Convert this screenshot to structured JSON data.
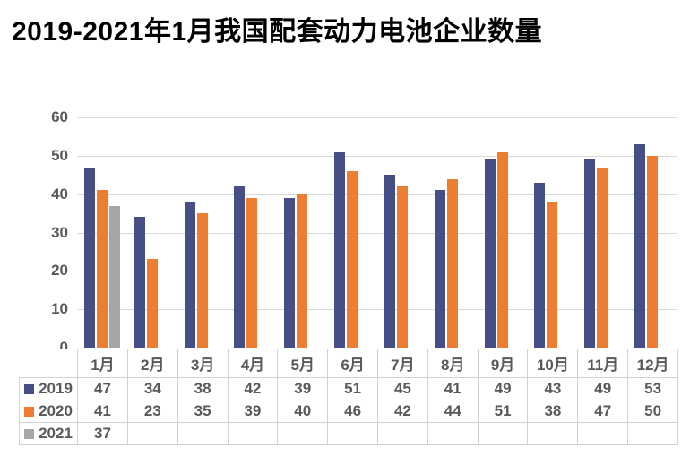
{
  "title": "2019-2021年1月我国配套动力电池企业数量",
  "chart_data": {
    "type": "bar",
    "title": "2019-2021年1月我国配套动力电池企业数量",
    "categories": [
      "1月",
      "2月",
      "3月",
      "4月",
      "5月",
      "6月",
      "7月",
      "8月",
      "9月",
      "10月",
      "11月",
      "12月"
    ],
    "series": [
      {
        "name": "2019",
        "color": "#454F85",
        "values": [
          47,
          34,
          38,
          42,
          39,
          51,
          45,
          41,
          49,
          43,
          49,
          53
        ]
      },
      {
        "name": "2020",
        "color": "#ED7D31",
        "values": [
          41,
          23,
          35,
          39,
          40,
          46,
          42,
          44,
          51,
          38,
          47,
          50
        ]
      },
      {
        "name": "2021",
        "color": "#A6A6A6",
        "values": [
          37,
          null,
          null,
          null,
          null,
          null,
          null,
          null,
          null,
          null,
          null,
          null
        ]
      }
    ],
    "xlabel": "",
    "ylabel": "",
    "ylim": [
      0,
      60
    ],
    "yticks": [
      0,
      10,
      20,
      30,
      40,
      50,
      60
    ],
    "grid": true,
    "legend_position": "data-table-left",
    "colors": {
      "gridline": "#D9D9D9",
      "axis_text": "#595959",
      "table_border": "#D2D2D2",
      "title_text": "#000000",
      "background": "#FFFFFF"
    }
  }
}
